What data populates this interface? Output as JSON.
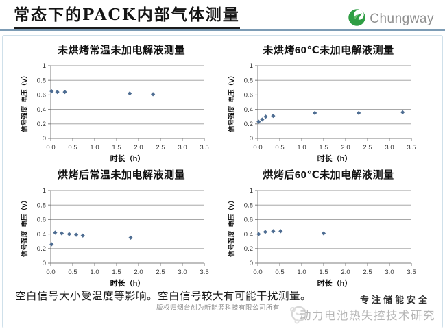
{
  "header": {
    "title": "常态下的PACK内部气体测量",
    "logo_text": "Chungway"
  },
  "chart_data": [
    {
      "type": "scatter",
      "title": "未烘烤常温未加电解液测量",
      "xlabel": "时长（h）",
      "ylabel": "信号强度_电压（V）",
      "xlim": [
        0,
        3.5
      ],
      "ylim": [
        0,
        1
      ],
      "xticks": [
        "0.0",
        "0.5",
        "1.0",
        "1.5",
        "2.0",
        "2.5",
        "3.0",
        "3.5"
      ],
      "yticks": [
        "0",
        "0.2",
        "0.4",
        "0.6",
        "0.8",
        "1"
      ],
      "grid": "horizontal",
      "legend": "none",
      "points": [
        [
          0.02,
          0.65
        ],
        [
          0.15,
          0.64
        ],
        [
          0.32,
          0.64
        ],
        [
          1.8,
          0.62
        ],
        [
          2.33,
          0.61
        ]
      ]
    },
    {
      "type": "scatter",
      "title": "未烘烤60℃未加电解液测量",
      "xlabel": "时长（h）",
      "ylabel": "信号强度_电压（V）",
      "xlim": [
        0,
        3.5
      ],
      "ylim": [
        0,
        1
      ],
      "xticks": [
        "0.0",
        "0.5",
        "1.0",
        "1.5",
        "2.0",
        "2.5",
        "3.0",
        "3.5"
      ],
      "yticks": [
        "0",
        "0.2",
        "0.4",
        "0.6",
        "0.8",
        "1"
      ],
      "grid": "horizontal",
      "legend": "none",
      "points": [
        [
          0.02,
          0.23
        ],
        [
          0.1,
          0.26
        ],
        [
          0.18,
          0.3
        ],
        [
          0.35,
          0.31
        ],
        [
          1.3,
          0.35
        ],
        [
          2.3,
          0.35
        ],
        [
          3.3,
          0.36
        ]
      ]
    },
    {
      "type": "scatter",
      "title": "烘烤后常温未加电解液测量",
      "xlabel": "时长（h）",
      "ylabel": "信号强度_电压（V）",
      "xlim": [
        0,
        3.5
      ],
      "ylim": [
        0,
        1
      ],
      "xticks": [
        "0.0",
        "0.5",
        "1.0",
        "1.5",
        "2.0",
        "2.5",
        "3.0",
        "3.5"
      ],
      "yticks": [
        "0",
        "0.2",
        "0.4",
        "0.6",
        "0.8",
        "1"
      ],
      "grid": "horizontal",
      "legend": "none",
      "points": [
        [
          0.02,
          0.26
        ],
        [
          0.1,
          0.42
        ],
        [
          0.25,
          0.41
        ],
        [
          0.42,
          0.4
        ],
        [
          0.58,
          0.39
        ],
        [
          0.73,
          0.38
        ],
        [
          1.82,
          0.35
        ]
      ]
    },
    {
      "type": "scatter",
      "title": "烘烤后60℃未加电解液测量",
      "xlabel": "时长（h）",
      "ylabel": "信号强度_电压（V）",
      "xlim": [
        0,
        3.5
      ],
      "ylim": [
        0,
        1
      ],
      "xticks": [
        "0.0",
        "0.5",
        "1.0",
        "1.5",
        "2.0",
        "2.5",
        "3.0",
        "3.5"
      ],
      "yticks": [
        "0",
        "0.2",
        "0.4",
        "0.6",
        "0.8",
        "1"
      ],
      "grid": "horizontal",
      "legend": "none",
      "points": [
        [
          0.02,
          0.4
        ],
        [
          0.17,
          0.43
        ],
        [
          0.35,
          0.44
        ],
        [
          0.52,
          0.44
        ],
        [
          1.5,
          0.41
        ]
      ]
    }
  ],
  "footer": {
    "note": "空白信号大小受温度等影响。空白信号较大有可能干扰测量。",
    "copyright": "版权归烟台创为新能源科技有限公司所有",
    "slogan": "专注储能安全",
    "watermark": "动力电池热失控技术研究"
  },
  "style": {
    "marker_color": "#4e6d92",
    "grid_color": "#9b9b9b",
    "axis_color": "#7f7f7f",
    "tick_text_color": "#333333",
    "logo_green": "#2f9e44",
    "divider_color": "#7d9cb5"
  }
}
